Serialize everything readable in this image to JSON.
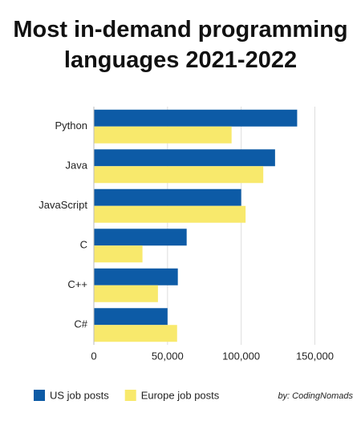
{
  "chart_data": {
    "type": "hbar",
    "title": "Most in-demand programming languages 2021-2022",
    "categories": [
      "Python",
      "Java",
      "JavaScript",
      "C",
      "C++",
      "C#"
    ],
    "series": [
      {
        "name": "US job posts",
        "color": "#0d5ba6",
        "values": [
          138000,
          123000,
          100000,
          63000,
          57000,
          50000
        ]
      },
      {
        "name": "Europe job posts",
        "color": "#f8e96c",
        "values": [
          93500,
          115000,
          103000,
          33000,
          43500,
          56500
        ]
      }
    ],
    "xlim": [
      0,
      165000
    ],
    "xticks": [
      0,
      {
        "value": 50000,
        "label": "50,000"
      },
      {
        "value": 100000,
        "label": "100,000"
      },
      {
        "value": 150000,
        "label": "150,000"
      }
    ],
    "grid": true,
    "legend": "bottom",
    "credit": "by: CodingNomads"
  }
}
